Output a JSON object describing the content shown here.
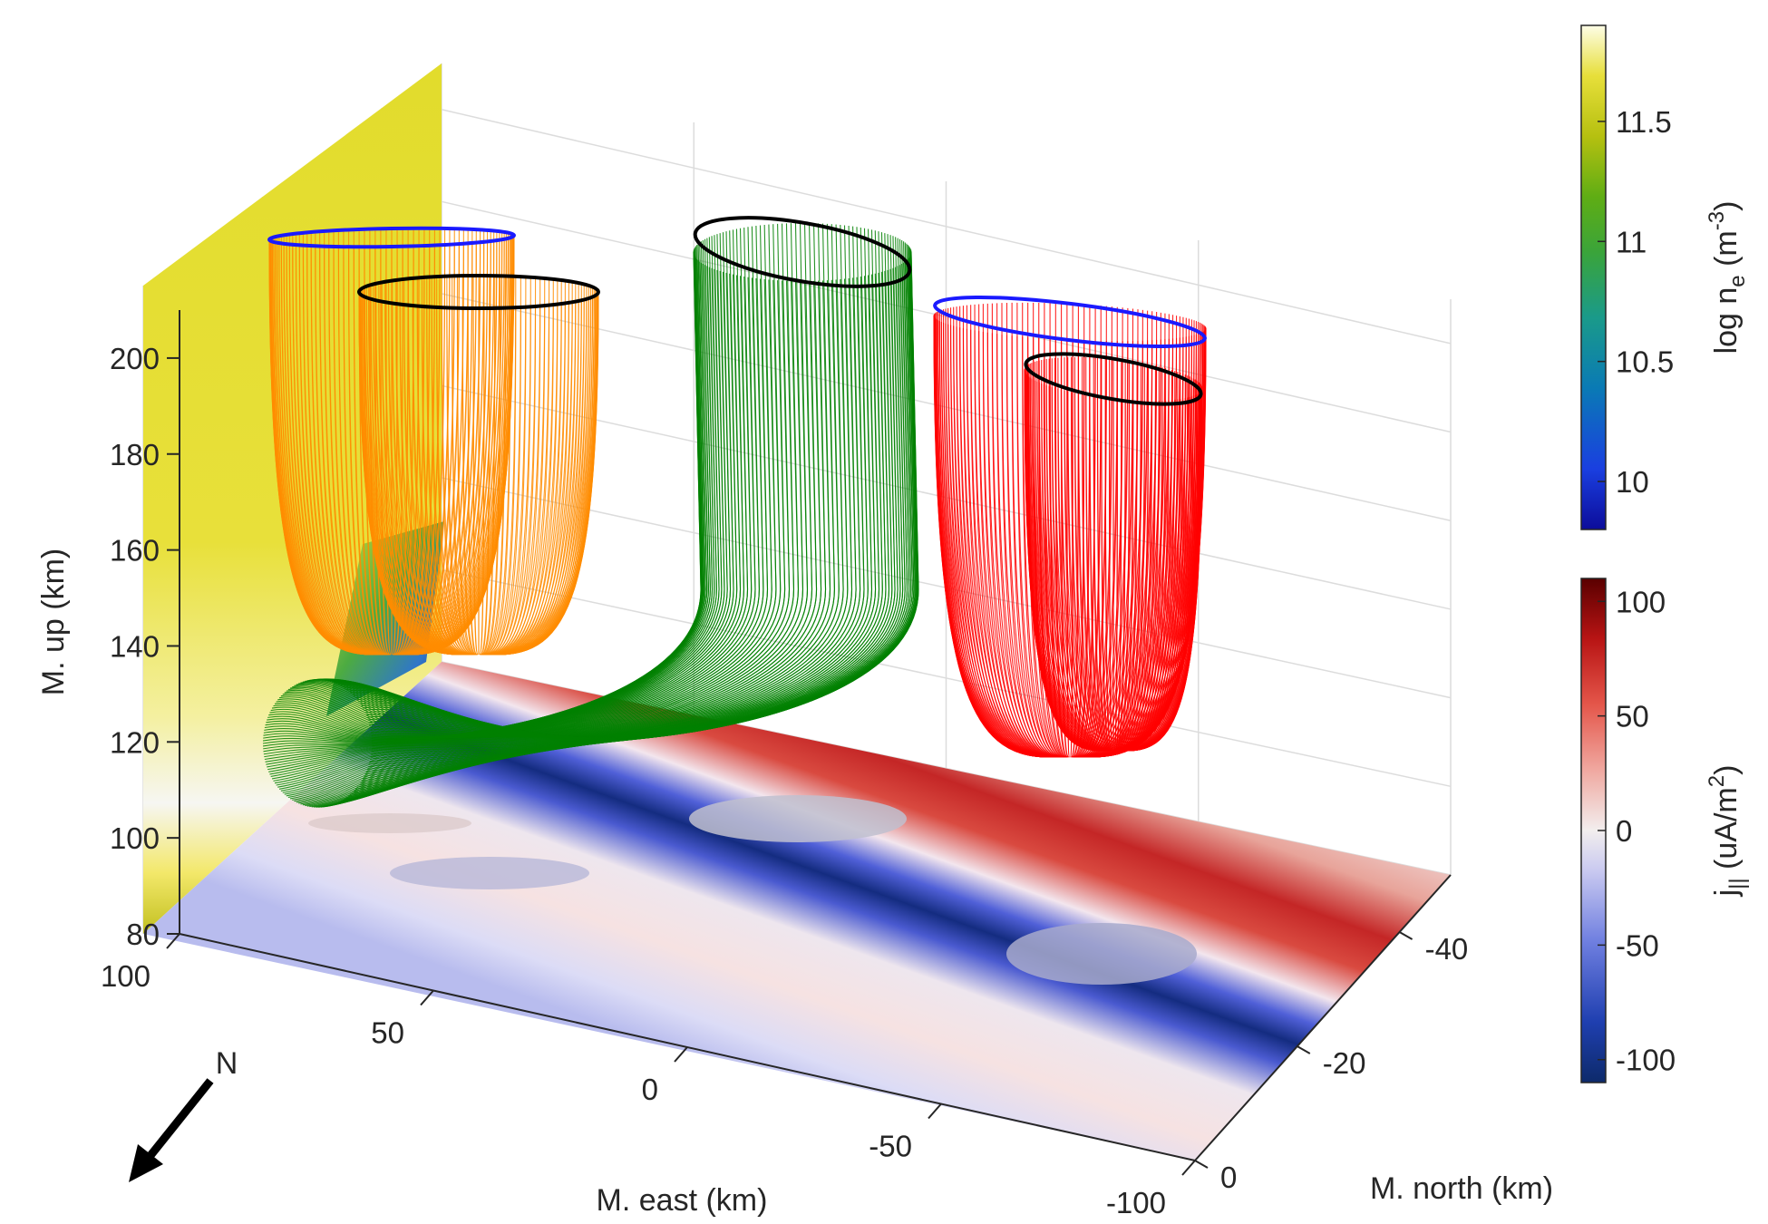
{
  "chart_data": {
    "type": "3d-flux-tubes",
    "z_axis": {
      "label": "M. up (km)",
      "ticks": [
        "80",
        "100",
        "120",
        "140",
        "160",
        "180",
        "200"
      ],
      "range": [
        80,
        210
      ]
    },
    "x_axis": {
      "label": "M. east (km)",
      "ticks": [
        "100",
        "50",
        "0",
        "-50",
        "-100"
      ],
      "range": [
        100,
        -100
      ]
    },
    "y_axis": {
      "label": "M. north (km)",
      "ticks": [
        "-40",
        "-20",
        "0"
      ],
      "range": [
        -50,
        0
      ]
    },
    "grid": true,
    "colorbar_ne": {
      "label": "log n",
      "label_sub": "e",
      "label_unit": " (m",
      "label_sup": "-3",
      "label_close": ")",
      "ticks": [
        "11.5",
        "11",
        "10.5",
        "10"
      ],
      "colormap": "parula",
      "range": [
        9.8,
        11.9
      ]
    },
    "colorbar_j": {
      "label": "j",
      "label_sub": "||",
      "label_unit": " (uA/m",
      "label_sup": "2",
      "label_close": ")",
      "ticks": [
        "100",
        "50",
        "0",
        "-50",
        "-100"
      ],
      "colormap": "blue-white-red",
      "range": [
        -110,
        110
      ]
    },
    "compass": {
      "label": "N"
    },
    "flux_tubes": [
      {
        "color": "#ff8c00",
        "base_alt_km": 140,
        "top_alt_km": 200,
        "rings": [
          "blue",
          "black"
        ]
      },
      {
        "color": "#008000",
        "base_alt_km": 110,
        "top_alt_km": 205,
        "rings": [
          "black"
        ]
      },
      {
        "color": "#ff0000",
        "base_alt_km": 120,
        "top_alt_km": 200,
        "rings": [
          "blue",
          "black"
        ]
      }
    ],
    "colors": {
      "orange": "#ff8c00",
      "green": "#008000",
      "red": "#ff0000",
      "blue_ring": "#1a1aff",
      "black_ring": "#000000",
      "dark_red": "#7a0000",
      "dark_blue": "#0d2a7a"
    }
  }
}
